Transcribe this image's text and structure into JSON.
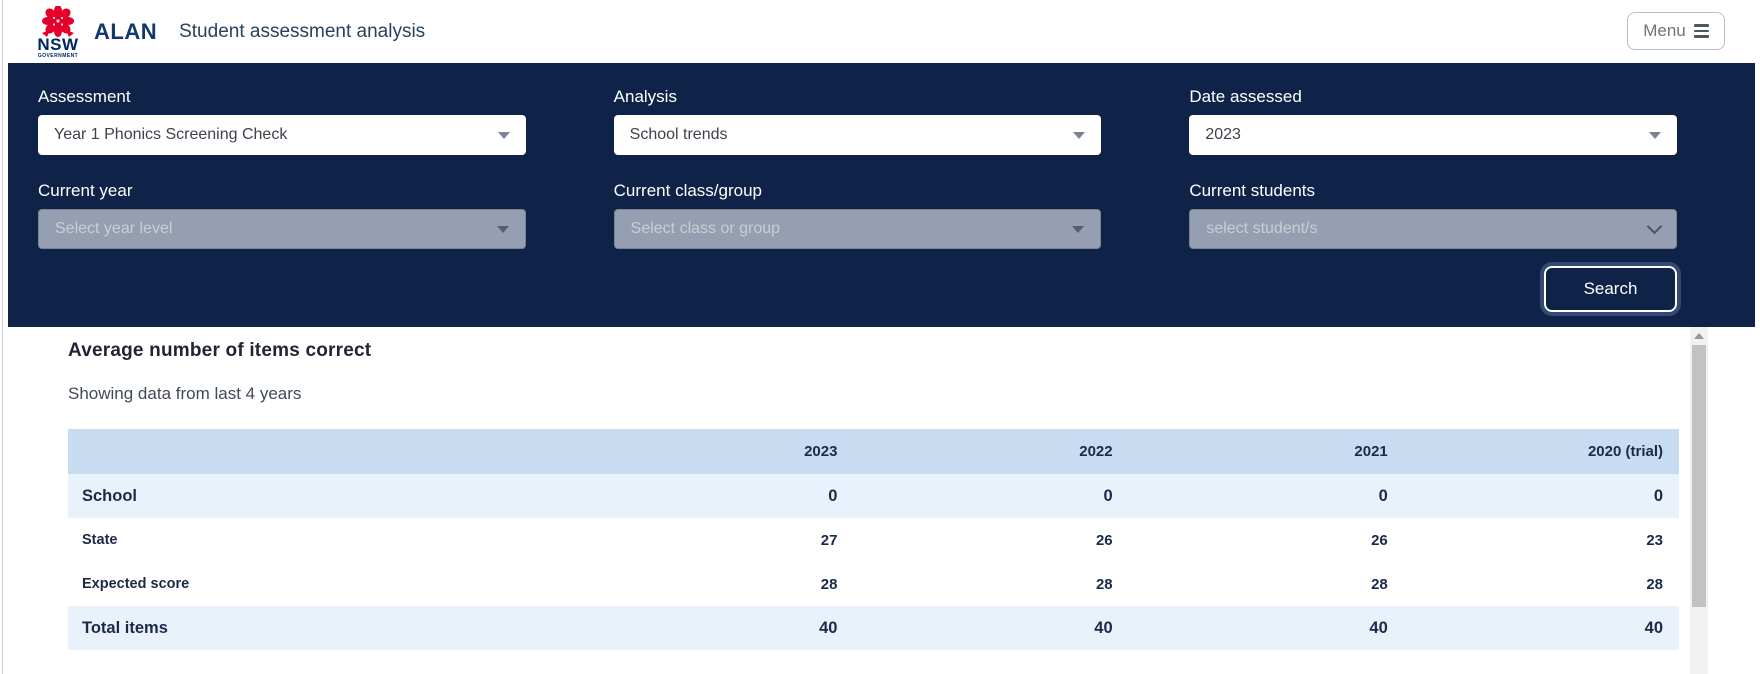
{
  "header": {
    "logo": {
      "org": "NSW",
      "suborg": "GOVERNMENT"
    },
    "app_name": "ALAN",
    "page_title": "Student assessment analysis",
    "menu_button": {
      "label": "Menu"
    }
  },
  "filters": {
    "fields": [
      {
        "label": "Assessment",
        "value": "Year 1 Phonics Screening Check",
        "disabled": false
      },
      {
        "label": "Analysis",
        "value": "School trends",
        "disabled": false
      },
      {
        "label": "Date assessed",
        "value": "2023",
        "disabled": false
      },
      {
        "label": "Current year",
        "placeholder": "Select year level",
        "disabled": true
      },
      {
        "label": "Current class/group",
        "placeholder": "Select class or group",
        "disabled": true
      },
      {
        "label": "Current students",
        "placeholder": "select student/s",
        "disabled": true
      }
    ],
    "search_label": "Search"
  },
  "results": {
    "title": "Average number of items correct",
    "subtitle": "Showing data from last 4 years",
    "table": {
      "columns": [
        "",
        "2023",
        "2022",
        "2021",
        "2020 (trial)"
      ],
      "rows": [
        {
          "label": "School",
          "values": [
            "0",
            "0",
            "0",
            "0"
          ],
          "shaded": true,
          "large": true
        },
        {
          "label": "State",
          "values": [
            "27",
            "26",
            "26",
            "23"
          ],
          "shaded": false,
          "large": false
        },
        {
          "label": "Expected score",
          "values": [
            "28",
            "28",
            "28",
            "28"
          ],
          "shaded": false,
          "large": false
        },
        {
          "label": "Total items",
          "values": [
            "40",
            "40",
            "40",
            "40"
          ],
          "shaded": true,
          "large": true
        }
      ]
    }
  },
  "colors": {
    "navy_bar": "#0e2347",
    "nsw_red": "#e4002b",
    "nsw_navy": "#002664",
    "table_header_bg": "#c7dcf0",
    "table_shaded_row_bg": "#e9f1fa",
    "disabled_field_bg": "#959fb1",
    "text_navy": "#1c2a49"
  }
}
